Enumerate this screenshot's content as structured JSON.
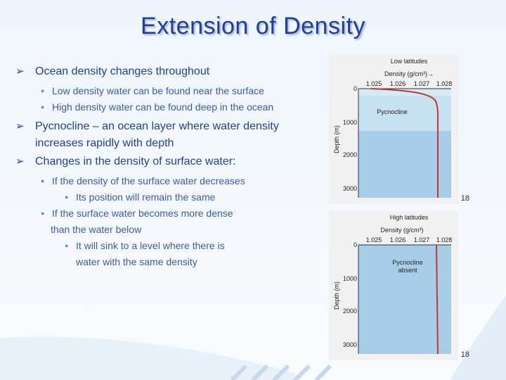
{
  "slide": {
    "title": "Extension of Density",
    "bullets": [
      {
        "text": "Ocean density changes throughout",
        "sub": [
          "Low density water can be found near the surface",
          "High density water can be found deep in the ocean"
        ]
      },
      {
        "text1": "Pycnocline – an ocean layer where water density",
        "text2": "increases rapidly with depth"
      },
      {
        "text": "Changes in the density of surface water:",
        "sub1": "If the density of the surface water decreases",
        "sub1a": "Its position will remain the same",
        "sub2a": "If the surface water becomes more dense",
        "sub2b": "than the water below",
        "sub2c": "It will sink to a level where there is",
        "sub2d": "water with the same density"
      }
    ]
  },
  "figures": [
    {
      "region": "Low latitudes",
      "xlabel": "Density (g/cm³)→",
      "ticks_x": [
        "1.025",
        "1.026",
        "1.027",
        "1.028"
      ],
      "ticks_y": [
        "0",
        "1000",
        "2000",
        "3000"
      ],
      "ylabel": "Depth (m)",
      "annotation": "Pycnocline",
      "page": "18"
    },
    {
      "region": "High latitudes",
      "xlabel": "Density (g/cm³)",
      "ticks_x": [
        "1.025",
        "1.026",
        "1.027",
        "1.028"
      ],
      "ticks_y": [
        "0",
        "1000",
        "2000",
        "3000"
      ],
      "ylabel": "Depth (m)",
      "annotation1": "Pycnocline",
      "annotation2": "absent",
      "page": "18"
    }
  ],
  "colors": {
    "title": "#1f3f9e",
    "bullet": "#1f3f9e",
    "sub": "#3a5ab0",
    "curve": "#c0392b",
    "water_light": "#cfe6f4",
    "water_deep": "#a9cde8"
  }
}
